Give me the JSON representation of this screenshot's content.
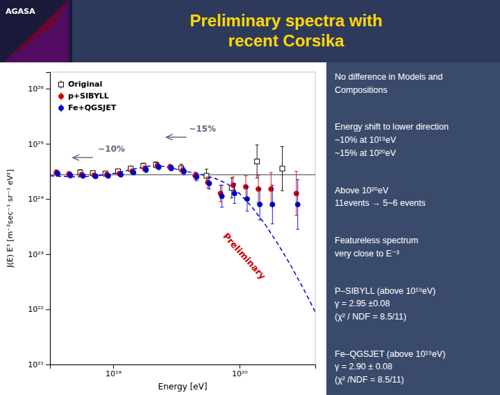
{
  "chart_data": {
    "type": "scatter",
    "title": "Preliminary spectra with\nrecent Corsika",
    "header_label": "AGASA",
    "xlabel": "Energy [eV]",
    "ylabel": "J(E) E³ [m⁻²sec⁻¹ sr⁻¹ eV²]",
    "log": true,
    "grid": false,
    "legend": "upper left",
    "xlim": [
      3.1623e+18,
      3.9811e+20
    ],
    "ylim": [
      1e+21,
      1.9953e+26
    ],
    "xticks": [
      {
        "value": 1e+19,
        "label": "10¹⁹"
      },
      {
        "value": 1e+20,
        "label": "10²⁰"
      }
    ],
    "yticks": [
      {
        "value": 1e+21,
        "label": "10²¹"
      },
      {
        "value": 1e+22,
        "label": "10²²"
      },
      {
        "value": 1e+23,
        "label": "10²³"
      },
      {
        "value": 1e+24,
        "label": "10²⁴"
      },
      {
        "value": 1e+25,
        "label": "10²⁵"
      },
      {
        "value": 1e+26,
        "label": "10²⁶"
      }
    ],
    "series": [
      {
        "name": "Original",
        "color": "#000000",
        "marker": "open-square",
        "x": [
          5.6234e+18,
          7.0795e+18,
          8.9125e+18,
          1.122e+19,
          1.4125e+19,
          1.7783e+19,
          2.2387e+19,
          3.5481e+19,
          5.6234e+19,
          8.9125e+19,
          1.4125e+20,
          2.2387e+20
        ],
        "values": [
          3.02e+24,
          2.9512e+24,
          2.884e+24,
          3.1623e+24,
          3.5481e+24,
          3.9811e+24,
          4.1687e+24,
          3.6308e+24,
          2.6303e+24,
          1.5849e+24,
          4.7863e+24,
          3.5481e+24
        ],
        "lower": [
          2.6915e+24,
          2.6915e+24,
          2.6303e+24,
          2.884e+24,
          3.2359e+24,
          3.5481e+24,
          3.7154e+24,
          3.0903e+24,
          1.9953e+24,
          1.0471e+24,
          2.3988e+24,
          1.4125e+24
        ],
        "upper": [
          3.3884e+24,
          3.2359e+24,
          3.1623e+24,
          3.4674e+24,
          3.8905e+24,
          4.4668e+24,
          4.6774e+24,
          4.2658e+24,
          3.4674e+24,
          2.3988e+24,
          9.5499e+24,
          8.9125e+24
        ]
      },
      {
        "name": "p+SIBYLL",
        "color": "#cc0000",
        "marker": "circle",
        "x": [
          3.5481e+18,
          4.4668e+18,
          5.6234e+18,
          7.0795e+18,
          8.9125e+18,
          1.122e+19,
          1.4125e+19,
          1.7783e+19,
          2.2387e+19,
          2.8184e+19,
          3.5481e+19,
          4.4668e+19,
          5.6234e+19,
          7.0795e+19,
          8.9125e+19,
          1.122e+20,
          1.4125e+20,
          1.7783e+20,
          2.8184e+20
        ],
        "values": [
          3.02e+24,
          2.8184e+24,
          2.7542e+24,
          2.6915e+24,
          2.7542e+24,
          2.884e+24,
          3.1623e+24,
          3.5481e+24,
          3.9811e+24,
          3.8019e+24,
          3.3113e+24,
          2.6303e+24,
          1.9953e+24,
          1.2589e+24,
          1.7783e+24,
          1.6596e+24,
          1.5136e+24,
          1.5136e+24,
          1.2589e+24
        ],
        "lower": [
          2.6915e+24,
          2.5119e+24,
          2.5119e+24,
          2.4547e+24,
          2.5119e+24,
          2.6303e+24,
          2.884e+24,
          3.1623e+24,
          3.5481e+24,
          3.3884e+24,
          2.884e+24,
          2.2387e+24,
          1.5849e+24,
          8.9125e+23,
          1.2589e+24,
          1.0471e+24,
          8.5114e+23,
          7.5858e+23,
          5.0119e+23
        ],
        "upper": [
          3.3884e+24,
          3.1623e+24,
          3.02e+24,
          2.9512e+24,
          3.02e+24,
          3.1623e+24,
          3.4674e+24,
          3.9811e+24,
          4.4668e+24,
          4.2658e+24,
          3.8019e+24,
          3.0903e+24,
          2.5119e+24,
          1.7783e+24,
          2.5119e+24,
          2.6303e+24,
          2.6915e+24,
          3.02e+24,
          3.1623e+24
        ]
      },
      {
        "name": "Fe+QGSJET",
        "color": "#0000cc",
        "marker": "circle",
        "x": [
          3.5481e+18,
          4.4668e+18,
          5.6234e+18,
          7.0795e+18,
          8.9125e+18,
          1.122e+19,
          1.4125e+19,
          1.7783e+19,
          2.2387e+19,
          2.8184e+19,
          3.5481e+19,
          4.4668e+19,
          5.6234e+19,
          7.0795e+19,
          8.9125e+19,
          1.122e+20,
          1.4125e+20,
          1.7783e+20,
          2.8184e+20
        ],
        "values": [
          2.884e+24,
          2.6915e+24,
          2.6303e+24,
          2.5704e+24,
          2.6303e+24,
          2.7542e+24,
          3.02e+24,
          3.3884e+24,
          3.8019e+24,
          3.6308e+24,
          3.1623e+24,
          2.5119e+24,
          1.9055e+24,
          1.122e+24,
          1.2589e+24,
          1e+24,
          7.9433e+23,
          7.9433e+23,
          7.9433e+23
        ],
        "lower": [
          2.5704e+24,
          2.3988e+24,
          2.3988e+24,
          2.3442e+24,
          2.3988e+24,
          2.5119e+24,
          2.7542e+24,
          3.02e+24,
          3.3884e+24,
          3.2359e+24,
          2.7542e+24,
          2.138e+24,
          1.5136e+24,
          7.0795e+23,
          8.3176e+23,
          6.0256e+23,
          4.1687e+23,
          3.5481e+23,
          2.8184e+23
        ],
        "upper": [
          3.2359e+24,
          3.02e+24,
          2.884e+24,
          2.8184e+24,
          2.884e+24,
          3.02e+24,
          3.3113e+24,
          3.8019e+24,
          4.2658e+24,
          4.0738e+24,
          3.6308e+24,
          2.9512e+24,
          2.3988e+24,
          1.7783e+24,
          1.9055e+24,
          1.6596e+24,
          1.5136e+24,
          1.7783e+24,
          2.2387e+24
        ]
      }
    ],
    "fit_line": {
      "color": "#0000cc",
      "line_style": "dashed",
      "x": [
        3.1623e+18,
        3.9811e+18,
        5.0119e+18,
        6.3096e+18,
        7.9433e+18,
        1e+19,
        1.2589e+19,
        1.5849e+19,
        1.9953e+19,
        2.5119e+19,
        3.1623e+19,
        3.9811e+19,
        5.0119e+19,
        6.3096e+19,
        7.9433e+19,
        1e+20,
        1.2589e+20,
        1.5849e+20,
        1.9953e+20,
        2.5119e+20,
        3.1623e+20,
        3.5481e+20,
        3.9811e+20
      ],
      "values": [
        2.6303e+24,
        2.5704e+24,
        2.5119e+24,
        2.5704e+24,
        2.6915e+24,
        2.884e+24,
        3.2359e+24,
        3.6308e+24,
        3.9811e+24,
        3.8905e+24,
        3.4674e+24,
        3.0903e+24,
        2.7542e+24,
        2.3988e+24,
        1.9055e+24,
        1.2589e+24,
        7.0795e+23,
        3.5481e+23,
        1.5849e+23,
        6.6069e+22,
        2.5119e+22,
        1.5136e+22,
        8.9125e+21
      ]
    },
    "reference_line": {
      "y": 2.7542e+24,
      "color": "#000000"
    },
    "annotations": [
      {
        "text": "~10%",
        "x": 7.5858e+18,
        "y": 7.0795e+24,
        "color": "#666688",
        "arrow_from": [
          6.9183e+18,
          5.6234e+24
        ],
        "arrow_to": [
          4.7863e+18,
          5.6234e+24
        ]
      },
      {
        "text": "~15%",
        "x": 3.9811e+19,
        "y": 1.6596e+25,
        "color": "#666688",
        "arrow_from": [
          3.8019e+19,
          1.3183e+25
        ],
        "arrow_to": [
          2.6303e+19,
          1.3183e+25
        ]
      }
    ],
    "stamp": {
      "text": "Preliminary",
      "x": 7.5858e+19,
      "y": 2.2387e+23,
      "color": "#cc0000"
    },
    "notes": [
      "No difference in Models and\nCompositions",
      "Energy shift to lower direction\n~10% at 10¹⁹eV\n~15% at 10²⁰eV",
      "Above 10²⁰eV\n11events → 5~6 events",
      "Featureless spectrum\nvery close to E⁻³",
      "P–SIBYLL (above 10¹⁹eV)\nγ = 2.95 ±0.08\n(χ² / NDF = 8.5/11)",
      "Fe–QGSJET (above 10¹⁹eV)\nγ = 2.90 ± 0.08\n(χ² /NDF = 8.5/11)"
    ]
  }
}
